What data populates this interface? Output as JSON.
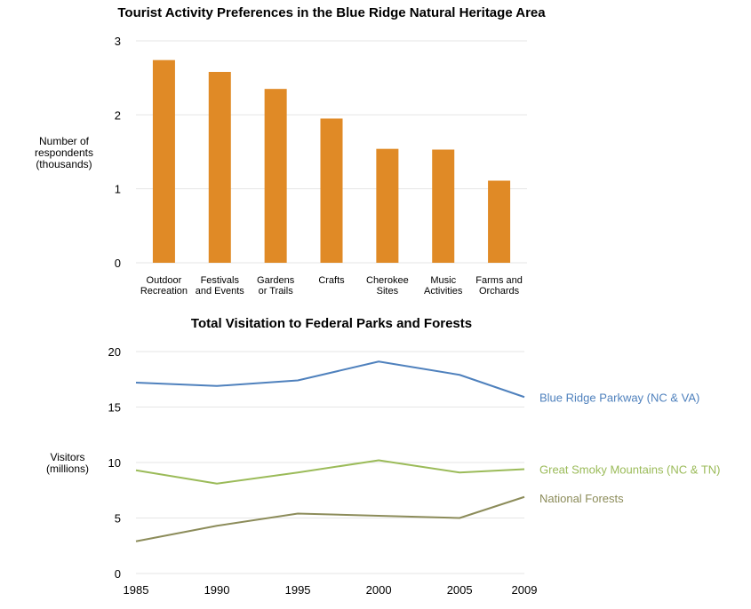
{
  "chart_data": [
    {
      "type": "bar",
      "title": "Tourist Activity Preferences in the Blue Ridge Natural Heritage Area",
      "ylabel_lines": [
        "Number of",
        "respondents",
        "(thousands)"
      ],
      "categories": [
        [
          "Outdoor",
          "Recreation"
        ],
        [
          "Festivals",
          "and Events"
        ],
        [
          "Gardens",
          "or Trails"
        ],
        [
          "Crafts"
        ],
        [
          "Cherokee",
          "Sites"
        ],
        [
          "Music",
          "Activities"
        ],
        [
          "Farms and",
          "Orchards"
        ]
      ],
      "values": [
        2.74,
        2.58,
        2.35,
        1.95,
        1.54,
        1.53,
        1.11
      ],
      "ylim": [
        0,
        3
      ],
      "yticks": [
        "0",
        "1",
        "2",
        "3"
      ],
      "bar_color": "#E08A26",
      "grid": true,
      "legend": "none"
    },
    {
      "type": "line",
      "title": "Total Visitation to Federal Parks and Forests",
      "ylabel_lines": [
        "Visitors",
        "(millions)"
      ],
      "x": [
        "1985",
        "1990",
        "1995",
        "2000",
        "2005",
        "2009"
      ],
      "ylim": [
        0,
        20
      ],
      "yticks": [
        "0",
        "5",
        "10",
        "15",
        "20"
      ],
      "grid": true,
      "legend": "right (inline labels)",
      "series": [
        {
          "name": "Blue Ridge Parkway (NC & VA)",
          "color": "#4F81BD",
          "values": [
            17.2,
            16.9,
            17.4,
            19.1,
            17.9,
            15.9
          ]
        },
        {
          "name": "Great Smoky Mountains (NC & TN)",
          "color": "#9BBB59",
          "values": [
            9.3,
            8.1,
            9.1,
            10.2,
            9.1,
            9.4
          ]
        },
        {
          "name": "National Forests",
          "color": "#8C8C5A",
          "values": [
            2.9,
            4.3,
            5.4,
            5.2,
            5.0,
            6.9
          ]
        }
      ]
    }
  ]
}
